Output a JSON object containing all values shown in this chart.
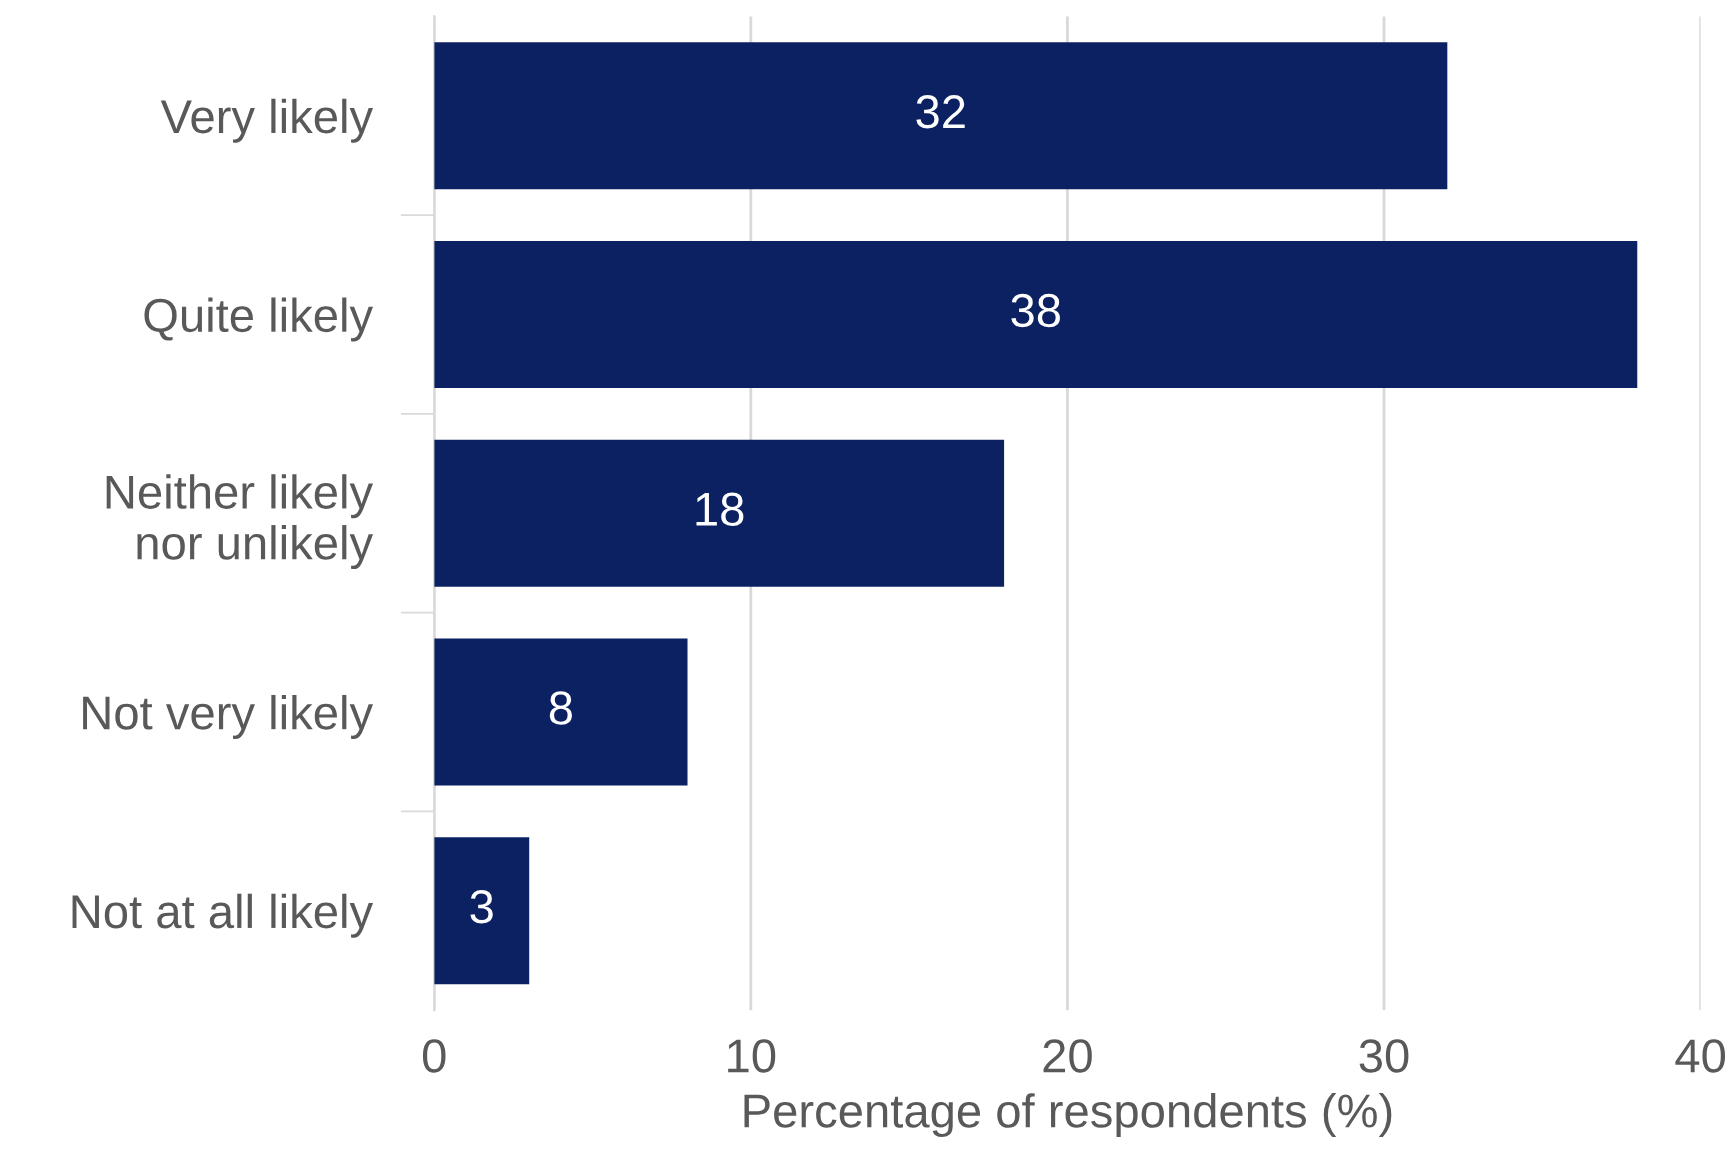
{
  "chart_data": {
    "type": "bar",
    "orientation": "horizontal",
    "xlabel": "Percentage of respondents (%)",
    "categories": [
      "Very likely",
      "Quite likely",
      "Neither likely\nnor unlikely",
      "Not very likely",
      "Not at all likely"
    ],
    "values": [
      32,
      38,
      18,
      8,
      3
    ],
    "color": "#0b2161",
    "data_labels": true,
    "xlim": [
      0,
      40
    ],
    "xticks": [
      0,
      10,
      20,
      30,
      40
    ],
    "grid": "x"
  }
}
